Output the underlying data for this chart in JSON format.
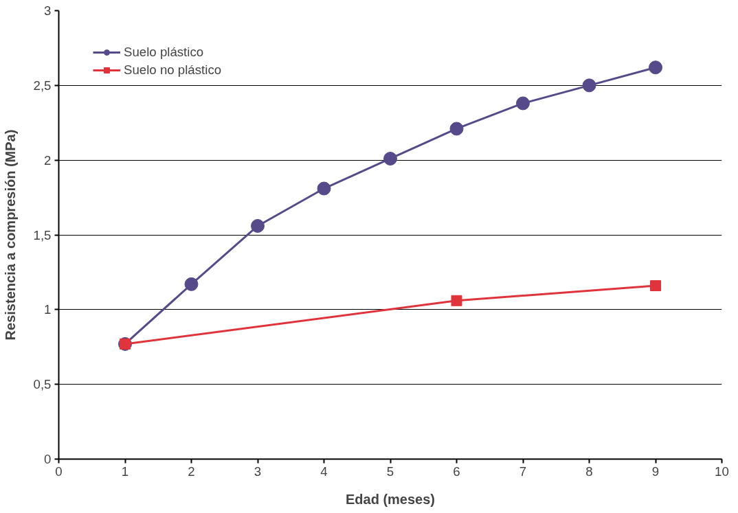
{
  "chart_data": {
    "type": "line",
    "xlabel": "Edad (meses)",
    "ylabel": "Resistencia a compresión (MPa)",
    "xlim": [
      0,
      10
    ],
    "xticks": [
      0,
      1,
      2,
      3,
      4,
      5,
      6,
      7,
      8,
      9,
      10
    ],
    "ylim": [
      0,
      3
    ],
    "yticks": [
      0,
      {
        "value": 0.5,
        "label": "0,5"
      },
      1,
      {
        "value": 1.5,
        "label": "1,5"
      },
      2,
      {
        "value": 2.5,
        "label": "2,5"
      },
      3
    ],
    "grid": "y",
    "legend": "top left",
    "series": [
      {
        "name": "Suelo plástico",
        "color": "#574a8a",
        "marker": "circle",
        "x": [
          1,
          2,
          3,
          4,
          5,
          6,
          7,
          8,
          9
        ],
        "values": [
          0.77,
          1.17,
          1.56,
          1.81,
          2.01,
          2.21,
          2.38,
          2.5,
          2.62
        ]
      },
      {
        "name": "Suelo no plástico",
        "color": "#e0343c",
        "marker": "square",
        "x": [
          1,
          6,
          9
        ],
        "values": [
          0.77,
          1.06,
          1.16
        ]
      }
    ]
  }
}
